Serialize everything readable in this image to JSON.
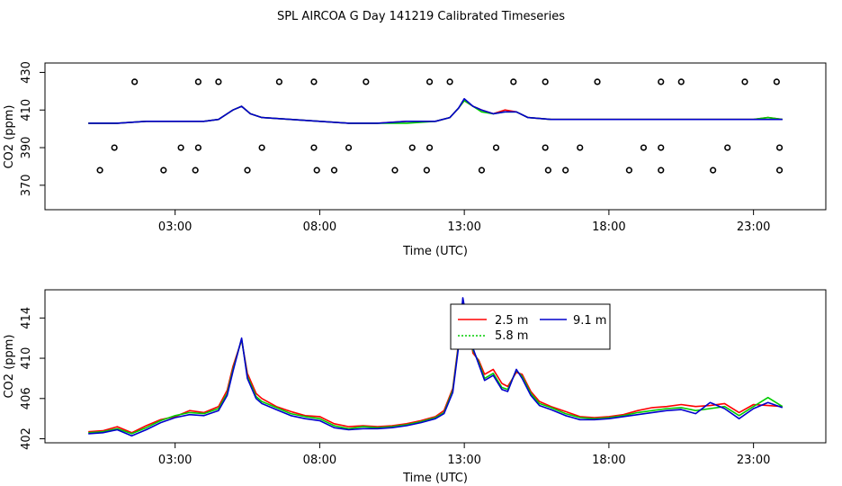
{
  "page_title": "SPL AIRCOA G  Day 141219  Calibrated Timeseries",
  "colors": {
    "h25": "#ff0000",
    "h58": "#00cc00",
    "h91": "#0000cc"
  },
  "chart_data": [
    {
      "type": "line",
      "title": "SPL AIRCOA G  Day 141219  Calibrated Timeseries",
      "xlabel": "Time (UTC)",
      "ylabel": "CO2 (ppm)",
      "x_unit": "hours UTC",
      "xlim": [
        -1.5,
        25.5
      ],
      "ylim": [
        357,
        435
      ],
      "x_ticks": [
        3,
        8,
        13,
        18,
        23
      ],
      "x_tick_labels": [
        "03:00",
        "08:00",
        "13:00",
        "18:00",
        "23:00"
      ],
      "y_ticks": [
        370,
        390,
        410,
        430
      ],
      "y_tick_labels": [
        "370",
        "390",
        "410",
        "430"
      ],
      "grid": false,
      "series": [
        {
          "name": "2.5 m",
          "color": "#ff0000",
          "style": "line",
          "x": [
            0,
            1,
            2,
            3,
            3.5,
            4,
            4.5,
            5,
            5.3,
            5.6,
            6,
            7,
            8,
            9,
            10,
            11,
            12,
            12.5,
            12.8,
            13,
            13.3,
            13.6,
            14,
            14.4,
            14.8,
            15.2,
            16,
            17,
            18,
            19,
            20,
            21,
            22,
            23,
            23.5,
            24
          ],
          "y": [
            403,
            403,
            404,
            404,
            404,
            404,
            405,
            410,
            412,
            408,
            406,
            405,
            404,
            403,
            403,
            404,
            404,
            406,
            411,
            415,
            412,
            410,
            408,
            410,
            409,
            406,
            405,
            405,
            405,
            405,
            405,
            405,
            405,
            405,
            406,
            405
          ]
        },
        {
          "name": "5.8 m",
          "color": "#00cc00",
          "style": "line",
          "x": [
            0,
            1,
            2,
            3,
            3.5,
            4,
            4.5,
            5,
            5.3,
            5.6,
            6,
            7,
            8,
            9,
            10,
            11,
            12,
            12.5,
            12.8,
            13,
            13.3,
            13.6,
            14,
            14.4,
            14.8,
            15.2,
            16,
            17,
            18,
            19,
            20,
            21,
            22,
            23,
            23.5,
            24
          ],
          "y": [
            403,
            403,
            404,
            404,
            404,
            404,
            405,
            410,
            412,
            408,
            406,
            405,
            404,
            403,
            403,
            403,
            404,
            406,
            411,
            415,
            412,
            409,
            408,
            409,
            409,
            406,
            405,
            405,
            405,
            405,
            405,
            405,
            405,
            405,
            406,
            405
          ]
        },
        {
          "name": "9.1 m",
          "color": "#0000cc",
          "style": "line",
          "x": [
            0,
            1,
            2,
            3,
            3.5,
            4,
            4.5,
            5,
            5.3,
            5.6,
            6,
            7,
            8,
            9,
            10,
            11,
            12,
            12.5,
            12.8,
            13,
            13.3,
            13.6,
            14,
            14.4,
            14.8,
            15.2,
            16,
            17,
            18,
            19,
            20,
            21,
            22,
            23,
            23.5,
            24
          ],
          "y": [
            403,
            403,
            404,
            404,
            404,
            404,
            405,
            410,
            412,
            408,
            406,
            405,
            404,
            403,
            403,
            404,
            404,
            406,
            411,
            416,
            412,
            410,
            408,
            409,
            409,
            406,
            405,
            405,
            405,
            405,
            405,
            405,
            405,
            405,
            405,
            405
          ]
        },
        {
          "name": "",
          "color": "#000000",
          "style": "points",
          "x": [
            1.6,
            3.8,
            4.5,
            6.6,
            7.8,
            9.6,
            11.8,
            12.5,
            14.7,
            15.8,
            17.6,
            19.8,
            20.5,
            22.7,
            23.8,
            0.9,
            3.2,
            3.8,
            6.0,
            7.8,
            9.0,
            11.2,
            11.8,
            14.1,
            15.8,
            17.0,
            19.2,
            19.8,
            22.1,
            23.9,
            0.4,
            2.6,
            3.7,
            5.5,
            7.9,
            8.5,
            10.6,
            11.7,
            13.6,
            15.9,
            16.5,
            18.7,
            19.8,
            21.6,
            23.9
          ],
          "y": [
            425,
            425,
            425,
            425,
            425,
            425,
            425,
            425,
            425,
            425,
            425,
            425,
            425,
            425,
            425,
            390,
            390,
            390,
            390,
            390,
            390,
            390,
            390,
            390,
            390,
            390,
            390,
            390,
            390,
            390,
            378,
            378,
            378,
            378,
            378,
            378,
            378,
            378,
            378,
            378,
            378,
            378,
            378,
            378,
            378
          ]
        }
      ]
    },
    {
      "type": "line",
      "xlabel": "Time (UTC)",
      "ylabel": "CO2 (ppm)",
      "x_unit": "hours UTC",
      "xlim": [
        -1.5,
        25.5
      ],
      "ylim": [
        401.6,
        416.8
      ],
      "x_ticks": [
        3,
        8,
        13,
        18,
        23
      ],
      "x_tick_labels": [
        "03:00",
        "08:00",
        "13:00",
        "18:00",
        "23:00"
      ],
      "y_ticks": [
        402,
        406,
        410,
        414
      ],
      "y_tick_labels": [
        "402",
        "406",
        "410",
        "414"
      ],
      "grid": false,
      "legend": {
        "position": "top-center",
        "entries": [
          "2.5 m",
          "5.8 m",
          "9.1 m"
        ]
      },
      "series": [
        {
          "name": "2.5 m",
          "color": "#ff0000",
          "x": [
            0,
            0.5,
            1,
            1.5,
            2,
            2.5,
            3,
            3.5,
            4,
            4.5,
            4.8,
            5,
            5.3,
            5.5,
            5.8,
            6,
            6.5,
            7,
            7.5,
            8,
            8.5,
            9,
            9.5,
            10,
            10.5,
            11,
            11.5,
            12,
            12.3,
            12.6,
            12.8,
            12.95,
            13.1,
            13.3,
            13.5,
            13.7,
            14,
            14.3,
            14.5,
            14.8,
            15,
            15.3,
            15.6,
            16,
            16.5,
            17,
            17.5,
            18,
            18.5,
            19,
            19.5,
            20,
            20.5,
            21,
            21.5,
            22,
            22.5,
            23,
            23.5,
            24
          ],
          "y": [
            402.7,
            402.8,
            403.2,
            402.6,
            403.3,
            403.9,
            404.2,
            404.8,
            404.6,
            405.2,
            406.8,
            409.2,
            411.8,
            408.5,
            406.5,
            406,
            405.2,
            404.7,
            404.3,
            404.2,
            403.5,
            403.2,
            403.3,
            403.2,
            403.3,
            403.5,
            403.8,
            404.2,
            404.8,
            407,
            411.5,
            415.6,
            414.2,
            410.5,
            409.8,
            408.4,
            408.9,
            407.5,
            407.2,
            408.6,
            408.4,
            406.7,
            405.7,
            405.2,
            404.7,
            404.2,
            404.1,
            404.2,
            404.4,
            404.8,
            405.1,
            405.2,
            405.4,
            405.2,
            405.3,
            405.5,
            404.6,
            405.4,
            405.3,
            405.2
          ]
        },
        {
          "name": "5.8 m",
          "color": "#00cc00",
          "x": [
            0,
            0.5,
            1,
            1.5,
            2,
            2.5,
            3,
            3.5,
            4,
            4.5,
            4.8,
            5,
            5.3,
            5.5,
            5.8,
            6,
            6.5,
            7,
            7.5,
            8,
            8.5,
            9,
            9.5,
            10,
            10.5,
            11,
            11.5,
            12,
            12.3,
            12.6,
            12.8,
            12.95,
            13.1,
            13.3,
            13.5,
            13.7,
            14,
            14.3,
            14.5,
            14.8,
            15,
            15.3,
            15.6,
            16,
            16.5,
            17,
            17.5,
            18,
            18.5,
            19,
            19.5,
            20,
            20.5,
            21,
            21.5,
            22,
            22.5,
            23,
            23.5,
            24
          ],
          "y": [
            402.6,
            402.7,
            403,
            402.5,
            403.1,
            403.8,
            404.3,
            404.6,
            404.5,
            405,
            406.5,
            408.9,
            411.9,
            408.2,
            406.2,
            405.7,
            405.1,
            404.5,
            404.2,
            404,
            403.3,
            403,
            403.2,
            403.1,
            403.2,
            403.4,
            403.7,
            404.1,
            404.6,
            406.8,
            411.3,
            415.8,
            413.8,
            410.8,
            409.6,
            408,
            408.5,
            407.1,
            406.9,
            408.8,
            408.2,
            406.5,
            405.5,
            405.1,
            404.5,
            404.1,
            404,
            404.1,
            404.3,
            404.6,
            404.8,
            405,
            405.1,
            404.8,
            405,
            405.2,
            404.3,
            405.2,
            406.1,
            405.2
          ]
        },
        {
          "name": "9.1 m",
          "color": "#0000cc",
          "x": [
            0,
            0.5,
            1,
            1.5,
            2,
            2.5,
            3,
            3.5,
            4,
            4.5,
            4.8,
            5,
            5.3,
            5.5,
            5.8,
            6,
            6.5,
            7,
            7.5,
            8,
            8.5,
            9,
            9.5,
            10,
            10.5,
            11,
            11.5,
            12,
            12.3,
            12.6,
            12.8,
            12.95,
            13.1,
            13.3,
            13.5,
            13.7,
            14,
            14.3,
            14.5,
            14.8,
            15,
            15.3,
            15.6,
            16,
            16.5,
            17,
            17.5,
            18,
            18.5,
            19,
            19.5,
            20,
            20.5,
            21,
            21.5,
            22,
            22.5,
            23,
            23.5,
            24
          ],
          "y": [
            402.5,
            402.6,
            402.9,
            402.3,
            402.9,
            403.6,
            404.1,
            404.4,
            404.3,
            404.8,
            406.3,
            408.7,
            412,
            408,
            406,
            405.5,
            404.9,
            404.3,
            404,
            403.8,
            403.1,
            402.9,
            403,
            403,
            403.1,
            403.3,
            403.6,
            404,
            404.5,
            406.6,
            411.1,
            416,
            413.5,
            411,
            409.4,
            407.8,
            408.3,
            406.9,
            406.7,
            408.9,
            408,
            406.3,
            405.3,
            404.9,
            404.3,
            403.9,
            403.9,
            404,
            404.2,
            404.4,
            404.6,
            404.8,
            404.9,
            404.5,
            405.6,
            405,
            404,
            405,
            405.6,
            405.1
          ]
        }
      ]
    }
  ]
}
